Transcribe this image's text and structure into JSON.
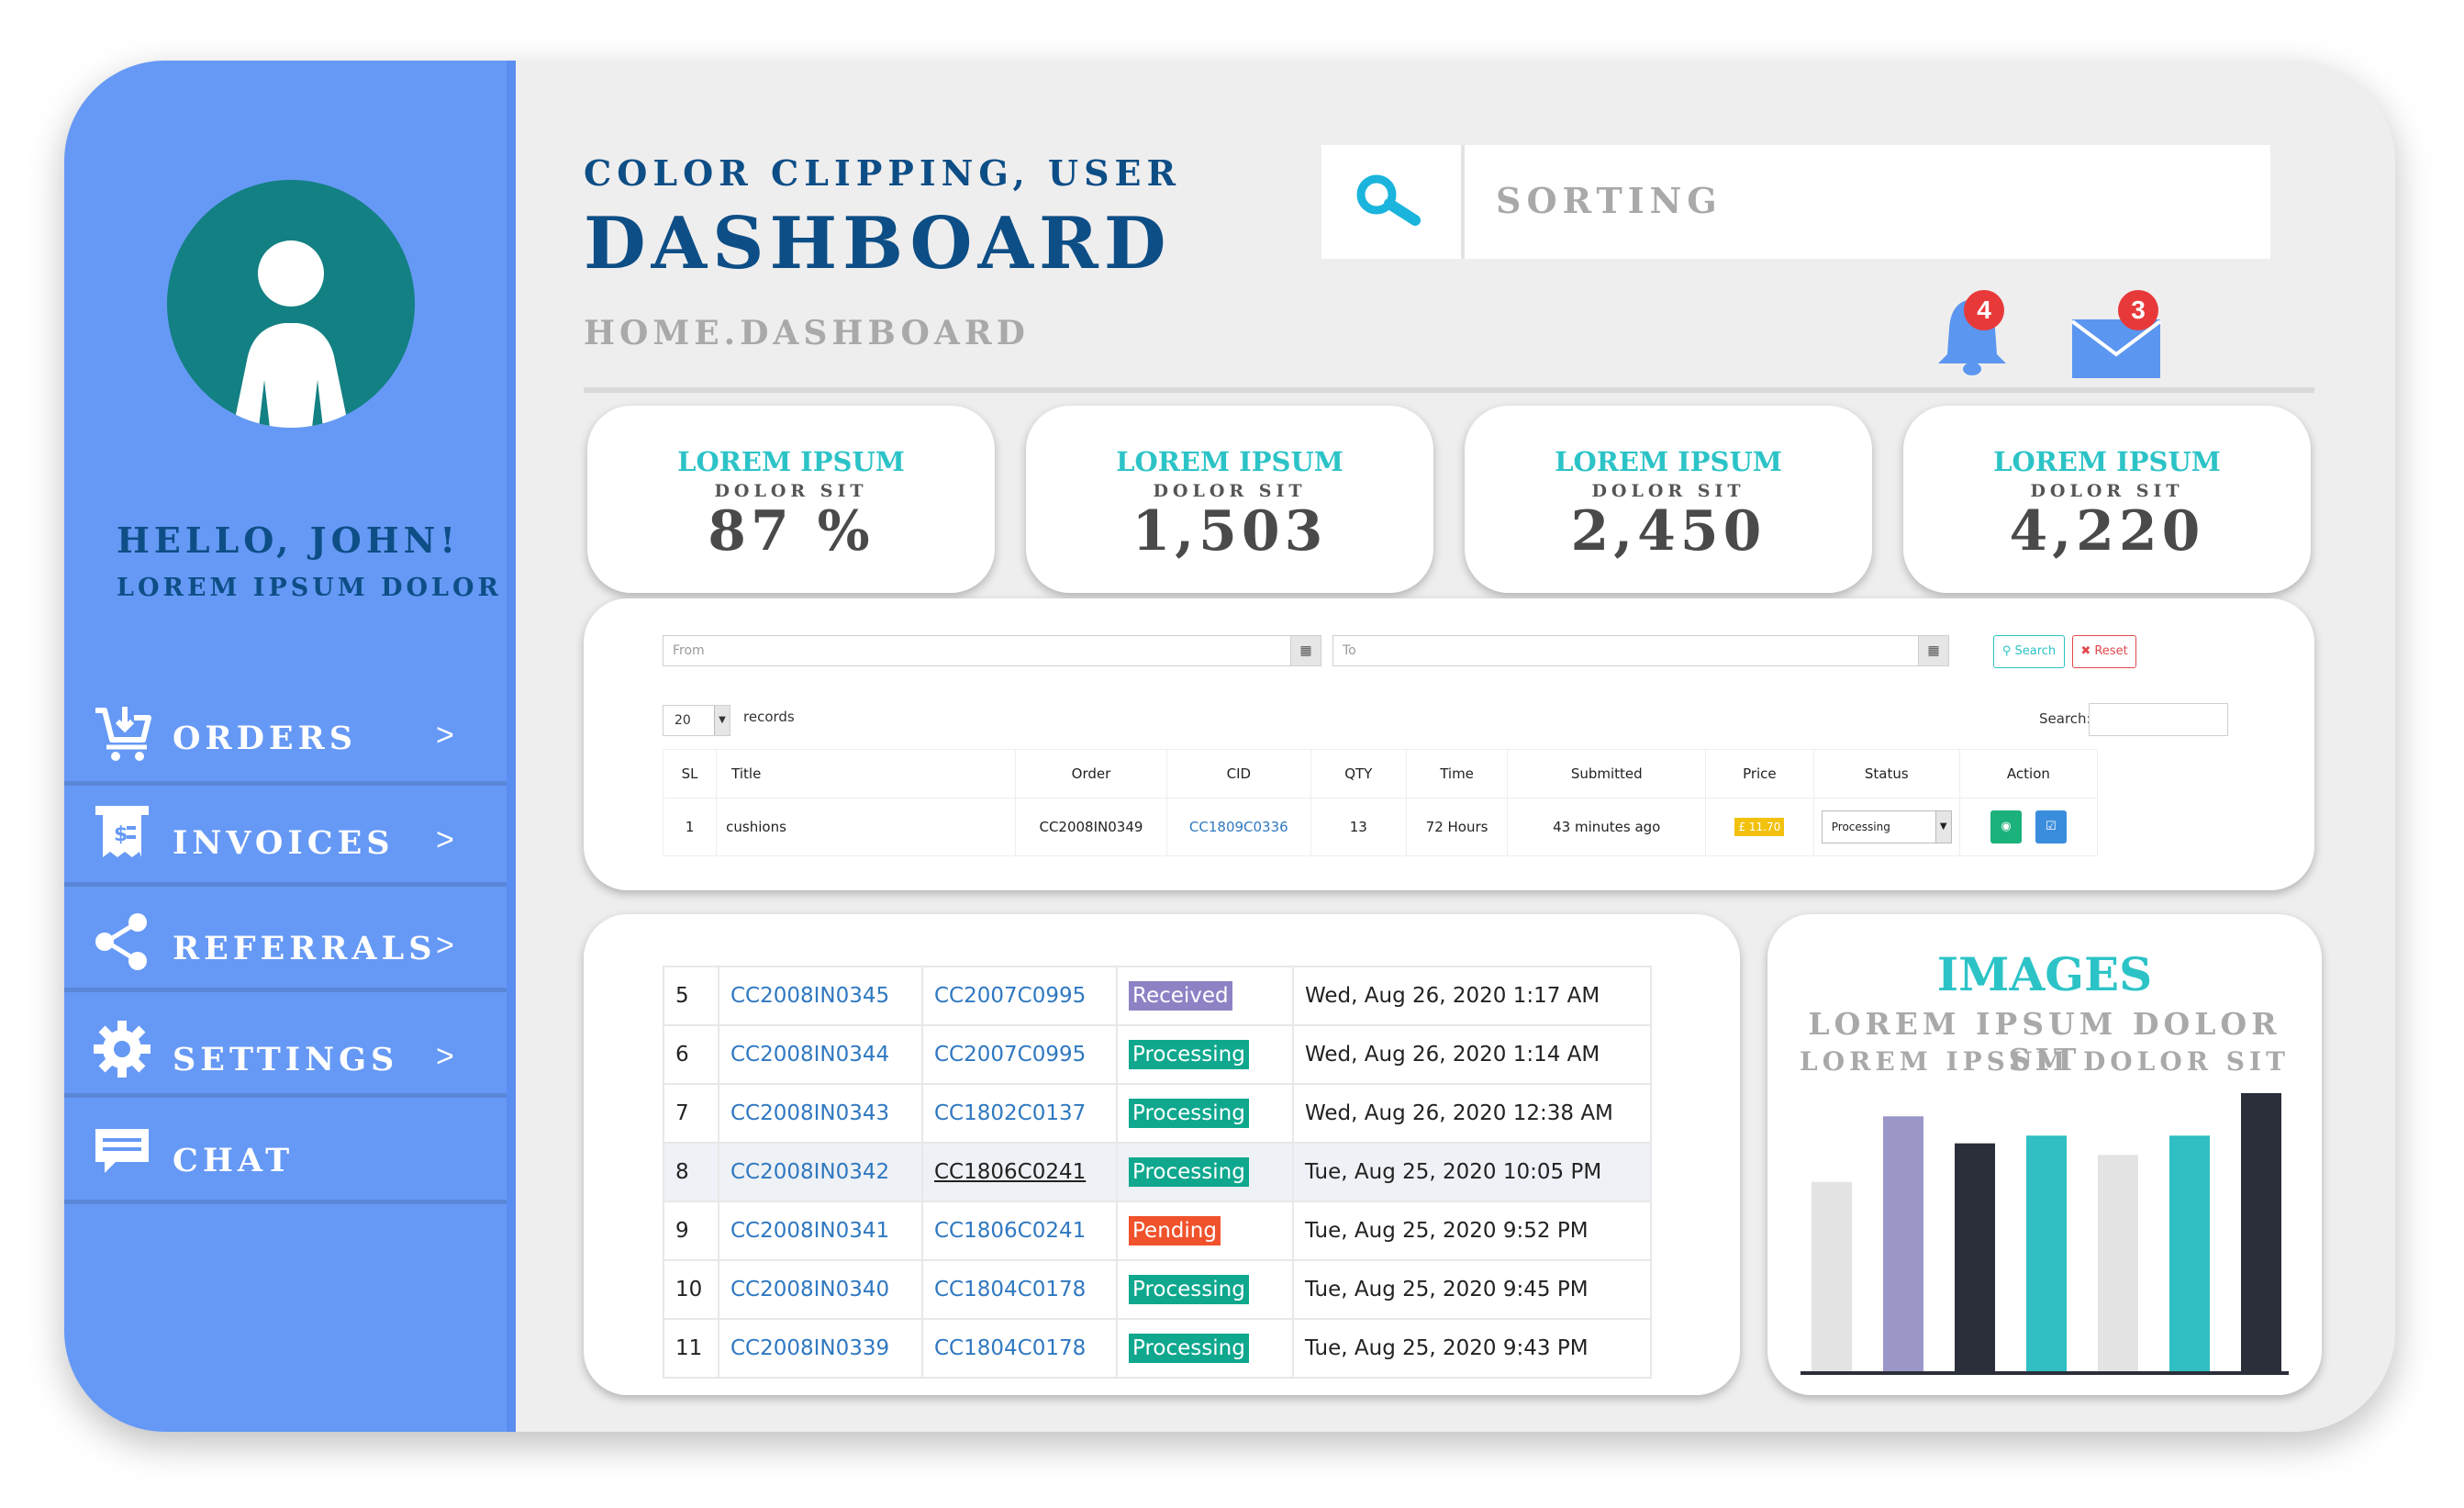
{
  "header": {
    "title_small": "COLOR CLIPPING, USER",
    "title_big": "DASHBOARD",
    "breadcrumb": "HOME.DASHBOARD",
    "search_placeholder": "SORTING",
    "notifications_count": "4",
    "messages_count": "3"
  },
  "sidebar": {
    "greeting": "HELLO, JOHN!",
    "subtitle": "LOREM IPSUM DOLOR",
    "items": [
      {
        "label": "ORDERS",
        "chevron": ">",
        "icon": "cart-download-icon"
      },
      {
        "label": "INVOICES",
        "chevron": ">",
        "icon": "receipt-icon"
      },
      {
        "label": "REFERRALS",
        "chevron": ">",
        "icon": "share-icon"
      },
      {
        "label": "SETTINGS",
        "chevron": ">",
        "icon": "gear-icon"
      },
      {
        "label": "CHAT",
        "chevron": "",
        "icon": "chat-icon"
      }
    ]
  },
  "stats": [
    {
      "title": "LOREM IPSUM",
      "subtitle": "DOLOR SIT",
      "value": "87 %"
    },
    {
      "title": "LOREM IPSUM",
      "subtitle": "DOLOR SIT",
      "value": "1,503"
    },
    {
      "title": "LOREM IPSUM",
      "subtitle": "DOLOR SIT",
      "value": "2,450"
    },
    {
      "title": "LOREM IPSUM",
      "subtitle": "DOLOR SIT",
      "value": "4,220"
    }
  ],
  "filter": {
    "from_placeholder": "From",
    "to_placeholder": "To",
    "search_button": "Search",
    "reset_button": "Reset",
    "page_size": "20",
    "records_label": "records",
    "search_label": "Search:"
  },
  "orders_table": {
    "headers": [
      "SL",
      "Title",
      "Order",
      "CID",
      "QTY",
      "Time",
      "Submitted",
      "Price",
      "Status",
      "Action"
    ],
    "row": {
      "sl": "1",
      "title": "cushions",
      "order": "CC2008IN0349",
      "cid": "CC1809C0336",
      "qty": "13",
      "time": "72 Hours",
      "submitted": "43 minutes ago",
      "price": "£ 11.70",
      "status": "Processing"
    }
  },
  "recent_orders": [
    {
      "n": "5",
      "order": "CC2008IN0345",
      "cid": "CC2007C0995",
      "status": "Received",
      "date": "Wed, Aug 26, 2020 1:17 AM"
    },
    {
      "n": "6",
      "order": "CC2008IN0344",
      "cid": "CC2007C0995",
      "status": "Processing",
      "date": "Wed, Aug 26, 2020 1:14 AM"
    },
    {
      "n": "7",
      "order": "CC2008IN0343",
      "cid": "CC1802C0137",
      "status": "Processing",
      "date": "Wed, Aug 26, 2020 12:38 AM"
    },
    {
      "n": "8",
      "order": "CC2008IN0342",
      "cid": "CC1806C0241",
      "status": "Processing",
      "date": "Tue, Aug 25, 2020 10:05 PM"
    },
    {
      "n": "9",
      "order": "CC2008IN0341",
      "cid": "CC1806C0241",
      "status": "Pending",
      "date": "Tue, Aug 25, 2020 9:52 PM"
    },
    {
      "n": "10",
      "order": "CC2008IN0340",
      "cid": "CC1804C0178",
      "status": "Processing",
      "date": "Tue, Aug 25, 2020 9:45 PM"
    },
    {
      "n": "11",
      "order": "CC2008IN0339",
      "cid": "CC1804C0178",
      "status": "Processing",
      "date": "Tue, Aug 25, 2020 9:43 PM"
    }
  ],
  "status_colors": {
    "Received": "#8e82c5",
    "Processing": "#0fa88e",
    "Pending": "#f0522b"
  },
  "images_panel": {
    "title": "IMAGES",
    "line1": "LOREM IPSUM DOLOR SIT",
    "line2": "LOREM IPSUM DOLOR SIT"
  },
  "chart_data": {
    "type": "bar",
    "values": [
      49,
      66,
      59,
      61,
      56,
      61,
      72
    ],
    "colors": [
      "#e3e3e3",
      "#9a97c8",
      "#2b2f3a",
      "#30bfc3",
      "#e3e3e3",
      "#30bfc3",
      "#2b2f3a"
    ],
    "ylim": [
      0,
      72
    ],
    "grid": false
  }
}
